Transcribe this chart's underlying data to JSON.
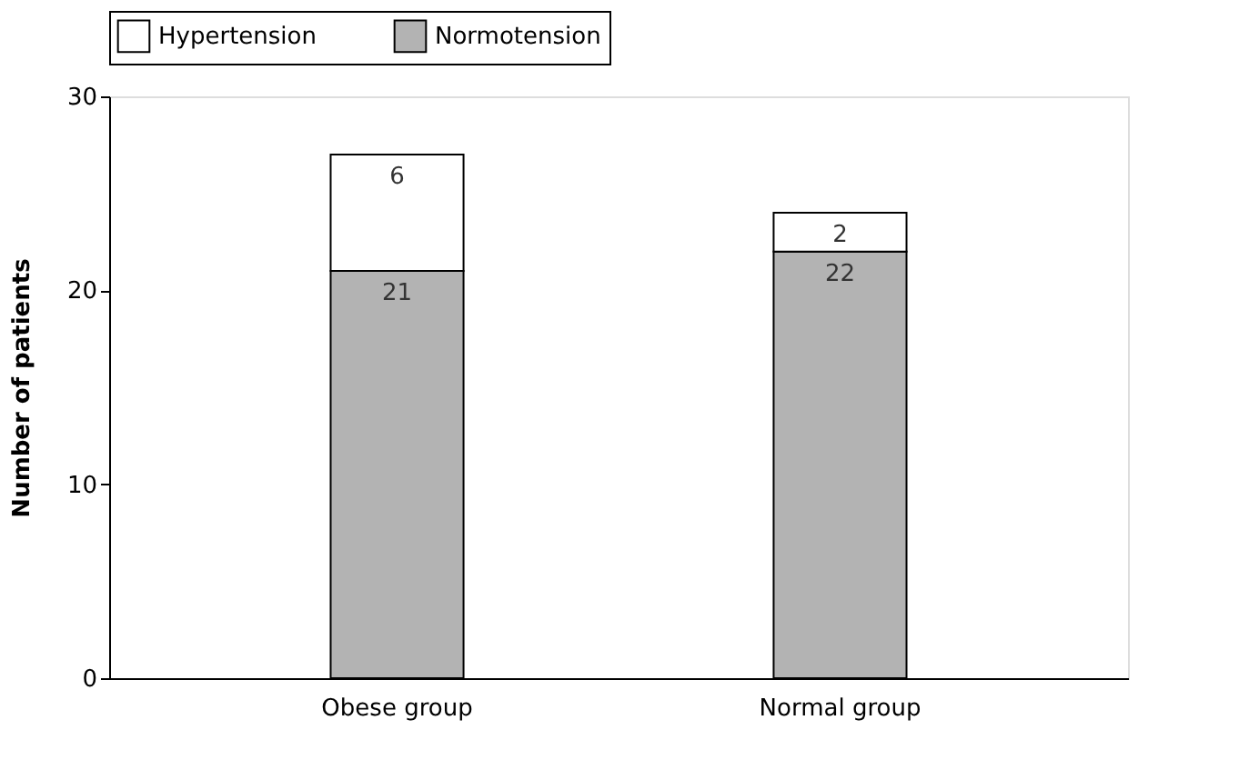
{
  "chart_data": {
    "type": "bar",
    "stacked": true,
    "ylabel": "Number of patients",
    "categories": [
      "Obese group",
      "Normal group"
    ],
    "series": [
      {
        "name": "Normotension",
        "color": "#b3b3b3",
        "values": [
          21,
          22
        ]
      },
      {
        "name": "Hypertension",
        "color": "#ffffff",
        "values": [
          6,
          2
        ]
      }
    ],
    "ylim": [
      0,
      30
    ],
    "yticks": [
      0,
      10,
      20,
      30
    ],
    "grid": false,
    "legend": "top",
    "data_labels": true
  }
}
